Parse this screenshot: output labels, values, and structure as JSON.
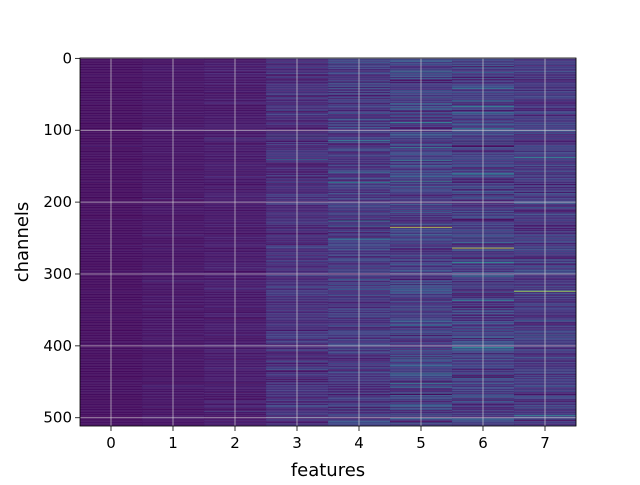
{
  "chart_data": {
    "type": "heatmap",
    "xlabel": "features",
    "ylabel": "channels",
    "x_ticks": [
      0,
      1,
      2,
      3,
      4,
      5,
      6,
      7
    ],
    "y_ticks": [
      0,
      100,
      200,
      300,
      400,
      500
    ],
    "xlim": [
      -0.5,
      7.5
    ],
    "ylim": [
      511.5,
      -0.5
    ],
    "n_features": 8,
    "n_channels": 512,
    "colormap": "viridis",
    "grid": true,
    "feature_mean_levels": [
      0.05,
      0.07,
      0.09,
      0.16,
      0.2,
      0.22,
      0.21,
      0.2
    ],
    "feature_variation": [
      0.015,
      0.02,
      0.035,
      0.08,
      0.1,
      0.12,
      0.12,
      0.1
    ],
    "highlights": [
      {
        "feature": 4,
        "channel": 173,
        "level": 0.55
      },
      {
        "feature": 4,
        "channel": 114,
        "level": 0.45
      },
      {
        "feature": 5,
        "channel": 235,
        "level": 0.95
      },
      {
        "feature": 5,
        "channel": 89,
        "level": 0.55
      },
      {
        "feature": 5,
        "channel": 142,
        "level": 0.5
      },
      {
        "feature": 5,
        "channel": 452,
        "level": 0.55
      },
      {
        "feature": 6,
        "channel": 264,
        "level": 0.95
      },
      {
        "feature": 6,
        "channel": 98,
        "level": 0.5
      },
      {
        "feature": 6,
        "channel": 303,
        "level": 0.5
      },
      {
        "feature": 6,
        "channel": 337,
        "level": 0.5
      },
      {
        "feature": 7,
        "channel": 324,
        "level": 0.92
      },
      {
        "feature": 7,
        "channel": 138,
        "level": 0.55
      },
      {
        "feature": 3,
        "channel": 141,
        "level": 0.45
      },
      {
        "feature": 3,
        "channel": 108,
        "level": 0.4
      }
    ]
  }
}
